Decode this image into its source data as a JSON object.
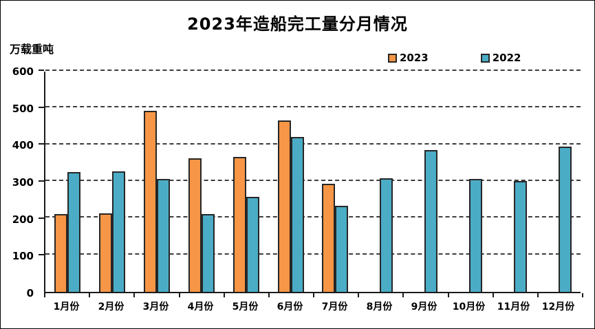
{
  "title": "2023年造船完工量分月情况",
  "y_axis": {
    "unit_label": "万载重吨",
    "ticks": [
      0,
      100,
      200,
      300,
      400,
      500,
      600
    ],
    "max": 600
  },
  "legend": [
    {
      "label": "2023",
      "color": "#F79646"
    },
    {
      "label": "2022",
      "color": "#4BACC6"
    }
  ],
  "chart_data": {
    "type": "bar",
    "title": "2023年造船完工量分月情况",
    "ylabel": "万载重吨",
    "categories": [
      "1月份",
      "2月份",
      "3月份",
      "4月份",
      "5月份",
      "6月份",
      "7月份",
      "8月份",
      "9月份",
      "10月份",
      "11月份",
      "12月份"
    ],
    "series": [
      {
        "name": "2023",
        "color": "#F79646",
        "values": [
          212,
          213,
          494,
          364,
          368,
          466,
          295,
          null,
          null,
          null,
          null,
          null
        ]
      },
      {
        "name": "2022",
        "color": "#4BACC6",
        "values": [
          326,
          328,
          307,
          211,
          258,
          421,
          234,
          310,
          386,
          307,
          302,
          396
        ]
      }
    ],
    "ylim": [
      0,
      600
    ],
    "ytick_interval": 100,
    "grid": "horizontal-dashed",
    "legend_position": "top-center-right"
  }
}
